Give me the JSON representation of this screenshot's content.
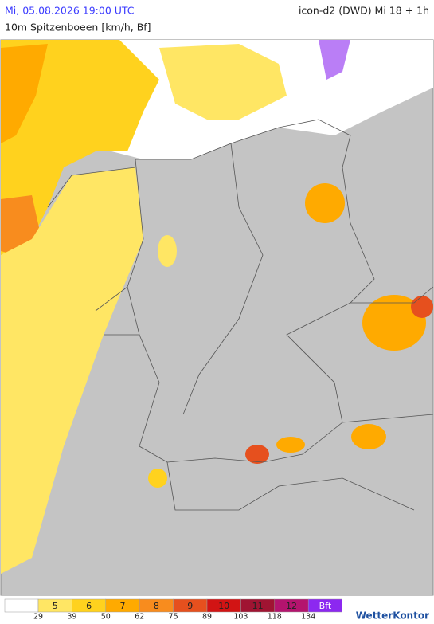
{
  "header": {
    "datetime": "Mi, 05.08.2026 19:00 UTC",
    "model": "icon-d2 (DWD) Mi 18 + 1h",
    "subtitle": "10m Spitzenboeen [km/h, Bf]"
  },
  "legend": {
    "levels": [
      {
        "label": "",
        "color": "#ffffff"
      },
      {
        "label": "5",
        "color": "#ffe664"
      },
      {
        "label": "6",
        "color": "#ffd21e"
      },
      {
        "label": "7",
        "color": "#ffaa00"
      },
      {
        "label": "8",
        "color": "#f88c1e"
      },
      {
        "label": "9",
        "color": "#e6501e"
      },
      {
        "label": "10",
        "color": "#d21414"
      },
      {
        "label": "11",
        "color": "#a01432"
      },
      {
        "label": "12",
        "color": "#b4146e"
      },
      {
        "label": "Bft",
        "color": "#8c28f0"
      }
    ],
    "kmh": [
      "29",
      "39",
      "50",
      "62",
      "75",
      "89",
      "103",
      "118",
      "134"
    ]
  },
  "brand": "WetterKontor"
}
